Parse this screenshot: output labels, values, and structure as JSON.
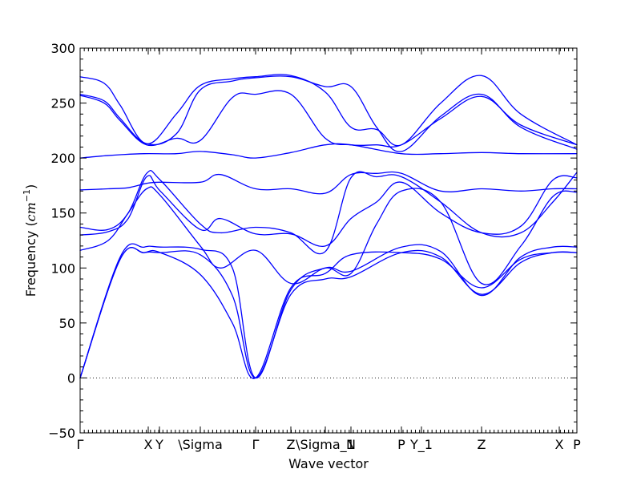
{
  "chart_data": {
    "type": "line",
    "ylabel_text": "Frequency (",
    "ylabel_unit": "cm",
    "ylabel_sup": "−1",
    "ylabel_close": ")",
    "xlabel": "Wave vector",
    "ylim": [
      -50,
      300
    ],
    "yticks": [
      -50,
      0,
      50,
      100,
      150,
      200,
      250,
      300
    ],
    "ytick_labels": [
      "−50",
      "0",
      "50",
      "100",
      "150",
      "200",
      "250",
      "300"
    ],
    "xlim": [
      0,
      6.2
    ],
    "kpoints": [
      {
        "label": "Γ",
        "x": 0
      },
      {
        "label": "X",
        "x": 0.85
      },
      {
        "label": "Y",
        "x": 0.99
      },
      {
        "label": "\\Sigma",
        "x": 1.5
      },
      {
        "label": "Γ",
        "x": 2.19
      },
      {
        "label": "Z",
        "x": 2.63
      },
      {
        "label": "\\Sigma_1",
        "x": 3.06
      },
      {
        "label": "N",
        "x": 3.38
      },
      {
        "label": "P",
        "x": 4.01
      },
      {
        "label": "Y_1",
        "x": 4.26
      },
      {
        "label": "Z",
        "x": 5.01
      },
      {
        "label": "X",
        "x": 5.98
      },
      {
        "label": "P",
        "x": 6.2
      }
    ],
    "zero_line": true,
    "bands": [
      {
        "x": [
          0,
          0.3,
          0.5,
          0.8,
          1.2,
          1.5,
          1.9,
          2.19,
          2.63,
          3.06,
          3.38,
          4.01,
          4.5,
          5.01,
          5.5,
          6.2
        ],
        "y": [
          200,
          202,
          203,
          204,
          204,
          206,
          203,
          200,
          205,
          212,
          212,
          204,
          204,
          205,
          204,
          204
        ]
      },
      {
        "x": [
          0,
          0.3,
          0.5,
          0.83,
          1.2,
          1.5,
          1.9,
          2.19,
          2.63,
          3.06,
          3.38,
          3.7,
          4.01,
          4.5,
          5.01,
          5.5,
          6.2
        ],
        "y": [
          257,
          250,
          234,
          212,
          218,
          216,
          255,
          258,
          258,
          218,
          212,
          212,
          212,
          236,
          256,
          230,
          212
        ]
      },
      {
        "x": [
          0,
          0.3,
          0.5,
          0.83,
          1.2,
          1.5,
          1.9,
          2.19,
          2.63,
          3.06,
          3.38,
          3.7,
          4.01,
          4.5,
          5.01,
          5.5,
          6.2
        ],
        "y": [
          258,
          252,
          236,
          213,
          222,
          262,
          270,
          273,
          274,
          265,
          265,
          228,
          206,
          238,
          258,
          228,
          208
        ]
      },
      {
        "x": [
          0,
          0.3,
          0.5,
          0.83,
          1.2,
          1.5,
          1.9,
          2.19,
          2.63,
          3.06,
          3.38,
          3.7,
          4.01,
          4.5,
          5.01,
          5.5,
          6.2
        ],
        "y": [
          274,
          268,
          248,
          213,
          240,
          266,
          272,
          274,
          275,
          260,
          228,
          226,
          212,
          250,
          275,
          240,
          212
        ]
      },
      {
        "x": [
          0,
          0.35,
          0.6,
          0.83,
          1.0,
          1.5,
          1.75,
          2.19,
          2.63,
          3.06,
          3.38,
          3.7,
          4.01,
          4.5,
          5.01,
          5.5,
          5.9,
          6.2
        ],
        "y": [
          171,
          172,
          173,
          177,
          178,
          178,
          185,
          172,
          172,
          168,
          185,
          186,
          186,
          170,
          172,
          170,
          172,
          172
        ]
      },
      {
        "x": [
          0,
          0.35,
          0.6,
          0.83,
          1.0,
          1.5,
          1.75,
          2.19,
          2.63,
          3.06,
          3.38,
          3.7,
          4.01,
          4.5,
          5.01,
          5.5,
          5.9,
          6.2
        ],
        "y": [
          137,
          135,
          150,
          186,
          180,
          140,
          132,
          137,
          132,
          115,
          182,
          183,
          183,
          160,
          132,
          132,
          160,
          187
        ]
      },
      {
        "x": [
          0,
          0.35,
          0.6,
          0.83,
          1.0,
          1.5,
          1.75,
          2.19,
          2.63,
          3.06,
          3.38,
          3.7,
          4.01,
          4.5,
          5.01,
          5.5,
          5.9,
          6.2
        ],
        "y": [
          130,
          133,
          145,
          183,
          170,
          135,
          145,
          131,
          131,
          120,
          145,
          160,
          178,
          150,
          132,
          138,
          180,
          182
        ]
      },
      {
        "x": [
          0,
          0.35,
          0.6,
          0.83,
          1.0,
          1.5,
          1.75,
          2.19,
          2.63,
          3.06,
          3.38,
          3.7,
          4.01,
          4.5,
          5.01,
          5.5,
          5.9,
          6.2
        ],
        "y": [
          116,
          125,
          150,
          172,
          166,
          120,
          100,
          116,
          86,
          100,
          95,
          140,
          170,
          160,
          86,
          120,
          165,
          169
        ]
      },
      {
        "x": [
          0,
          0.5,
          0.8,
          1.0,
          1.5,
          1.9,
          2.19,
          2.63,
          3.06,
          3.38,
          4.01,
          4.5,
          5.01,
          5.5,
          5.9,
          6.2
        ],
        "y": [
          0,
          110,
          119,
          119,
          117,
          100,
          0,
          80,
          100,
          97,
          119,
          115,
          75,
          110,
          119,
          119
        ]
      },
      {
        "x": [
          0,
          0.5,
          0.8,
          1.0,
          1.5,
          1.9,
          2.19,
          2.63,
          3.06,
          3.38,
          4.01,
          4.5,
          5.01,
          5.5,
          5.9,
          6.2
        ],
        "y": [
          0,
          108,
          114,
          114,
          112,
          75,
          0,
          76,
          90,
          92,
          114,
          110,
          76,
          105,
          114,
          114
        ]
      },
      {
        "x": [
          0,
          0.5,
          0.8,
          1.0,
          1.5,
          1.9,
          2.19,
          2.63,
          3.06,
          3.38,
          4.01,
          4.5,
          5.01,
          5.5,
          5.9,
          6.2
        ],
        "y": [
          0,
          108,
          114,
          114,
          94,
          50,
          0,
          82,
          95,
          112,
          114,
          108,
          82,
          108,
          114,
          114
        ]
      }
    ]
  }
}
